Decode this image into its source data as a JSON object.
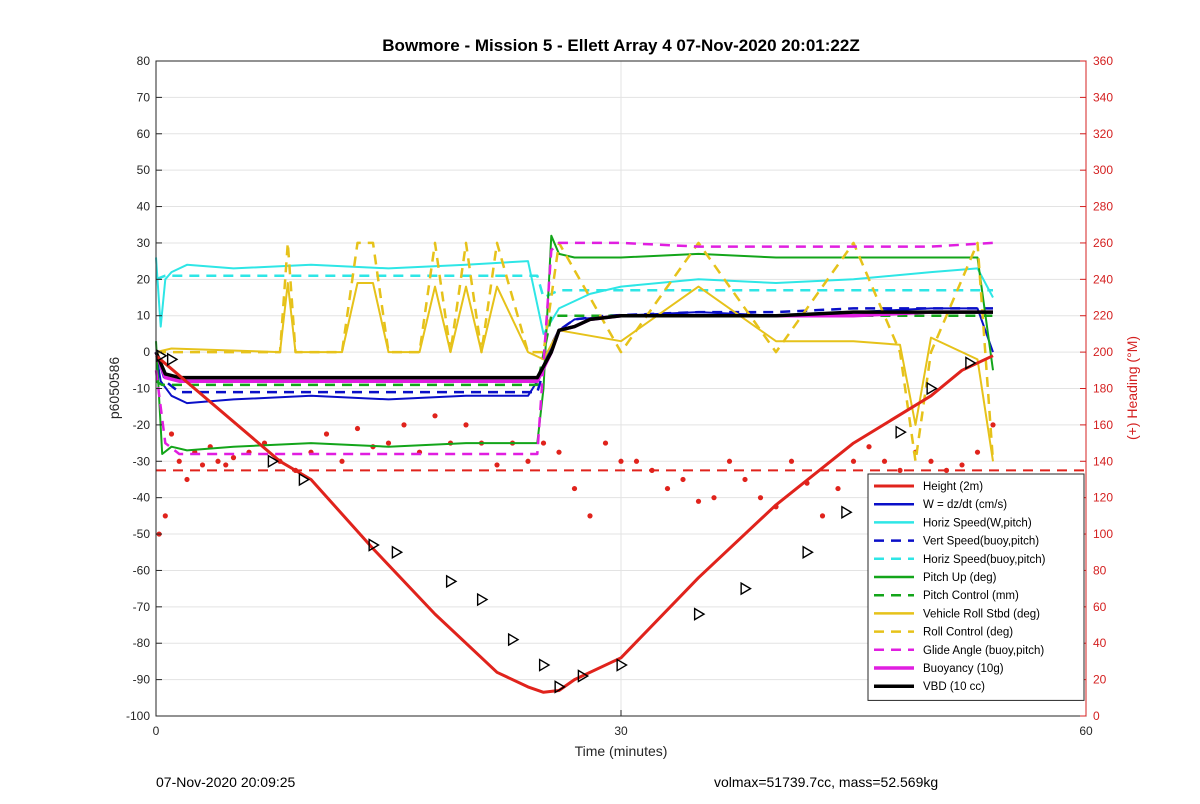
{
  "chart_data": {
    "type": "line",
    "title": "Bowmore - Mission 5 - Ellett Array 4 07-Nov-2020 20:01:22Z",
    "xlabel": "Time (minutes)",
    "ylabel_left": "p6050586",
    "ylabel_right": "(+) Heading (°M)",
    "xlim": [
      0,
      60
    ],
    "ylim_left": [
      -100,
      80
    ],
    "ylim_right": [
      0,
      360
    ],
    "xticks": [
      0,
      30,
      60
    ],
    "yticks_left": [
      -100,
      -90,
      -80,
      -70,
      -60,
      -50,
      -40,
      -30,
      -20,
      -10,
      0,
      10,
      20,
      30,
      40,
      50,
      60,
      70,
      80
    ],
    "yticks_right": [
      0,
      20,
      40,
      60,
      80,
      100,
      120,
      140,
      160,
      180,
      200,
      220,
      240,
      260,
      280,
      300,
      320,
      340,
      360
    ],
    "grid": true,
    "legend_position": "bottom-right",
    "colors": {
      "red": "#e0231c",
      "blue": "#0a0fc8",
      "cyan": "#2ee6e6",
      "green": "#13a51a",
      "gold": "#e6c21a",
      "magenta": "#e01ee0",
      "black": "#000000",
      "grid": "#e3e3e3",
      "right_axis": "#d42020"
    },
    "series": [
      {
        "name": "Height (2m)",
        "color": "#e0231c",
        "dash": false,
        "width": 3,
        "x": [
          0,
          8,
          10,
          14,
          18,
          22,
          24,
          25,
          26,
          27,
          30,
          35,
          40,
          45,
          50,
          52,
          54
        ],
        "y": [
          -1,
          -30,
          -35,
          -54,
          -72,
          -88,
          -92,
          -93.5,
          -93,
          -90,
          -84,
          -62,
          -42,
          -25,
          -12,
          -5,
          -1
        ]
      },
      {
        "name": "W = dz/dt (cm/s)",
        "color": "#0a0fc8",
        "dash": false,
        "width": 2,
        "x": [
          0,
          0.3,
          1,
          2,
          5,
          10,
          15,
          20,
          24,
          24.6,
          25.5,
          26,
          27,
          30,
          35,
          40,
          45,
          50,
          53,
          54
        ],
        "y": [
          0,
          -8,
          -12,
          -14,
          -13,
          -12,
          -13,
          -12,
          -12,
          -8,
          2,
          6,
          9,
          10,
          11,
          10,
          11,
          12,
          12,
          0
        ]
      },
      {
        "name": "Horiz Speed(W,pitch)",
        "color": "#2ee6e6",
        "dash": false,
        "width": 2,
        "x": [
          0,
          0.3,
          0.6,
          1,
          2,
          5,
          10,
          15,
          20,
          24,
          25,
          26,
          28,
          30,
          35,
          40,
          45,
          50,
          53,
          54
        ],
        "y": [
          26,
          7,
          20,
          22,
          24,
          23,
          24,
          23,
          24,
          25,
          5,
          12,
          16,
          18,
          20,
          19,
          20,
          22,
          23,
          15
        ]
      },
      {
        "name": "Vert Speed(buoy,pitch)",
        "color": "#0a0fc8",
        "dash": true,
        "width": 2.5,
        "x": [
          0,
          0.6,
          1.5,
          10,
          20,
          24.6,
          25.5,
          26,
          27,
          29,
          35,
          40,
          45,
          50,
          54
        ],
        "y": [
          0,
          -8,
          -11,
          -11,
          -11,
          -11,
          2,
          6,
          9,
          10,
          11,
          11,
          12,
          12,
          12
        ]
      },
      {
        "name": "Horiz Speed(buoy,pitch)",
        "color": "#2ee6e6",
        "dash": true,
        "width": 2.5,
        "x": [
          0,
          0.6,
          1.5,
          10,
          20,
          24.6,
          25,
          26,
          30,
          35,
          40,
          45,
          50,
          54
        ],
        "y": [
          20,
          21,
          21,
          21,
          21,
          21,
          15,
          17,
          17,
          17,
          17,
          17,
          17,
          17
        ]
      },
      {
        "name": "Pitch Up (deg)",
        "color": "#13a51a",
        "dash": false,
        "width": 2,
        "x": [
          0,
          0.4,
          1,
          2,
          5,
          10,
          15,
          20,
          24.6,
          25,
          25.5,
          26,
          27,
          30,
          35,
          40,
          45,
          50,
          53,
          54
        ],
        "y": [
          3,
          -28,
          -26,
          -27,
          -26,
          -25,
          -26,
          -25,
          -25,
          -10,
          32,
          27,
          26,
          26,
          27,
          26,
          26,
          26,
          26,
          -5
        ]
      },
      {
        "name": "Pitch Control (mm)",
        "color": "#13a51a",
        "dash": true,
        "width": 2.5,
        "x": [
          0,
          0.4,
          1.5,
          10,
          20,
          24.6,
          25.5,
          26,
          30,
          35,
          40,
          45,
          50,
          54
        ],
        "y": [
          -8,
          -9,
          -9,
          -9,
          -9,
          -9,
          10,
          10,
          10,
          10,
          10,
          10,
          10,
          10
        ]
      },
      {
        "name": "Vehicle Roll Stbd (deg)",
        "color": "#e6c21a",
        "dash": false,
        "width": 2,
        "x": [
          0,
          1,
          8,
          8.5,
          9,
          10,
          12,
          13,
          14,
          15,
          17,
          18,
          19,
          20,
          21,
          22,
          24,
          25,
          26,
          30,
          35,
          40,
          45,
          48,
          49,
          50,
          53,
          54
        ],
        "y": [
          0,
          1,
          0,
          19,
          0,
          0,
          0,
          19,
          19,
          0,
          0,
          18,
          0,
          18,
          0,
          18,
          0,
          -2,
          6,
          3,
          18,
          3,
          3,
          2,
          -20,
          4,
          -2,
          -30
        ]
      },
      {
        "name": "Roll Control (deg)",
        "color": "#e6c21a",
        "dash": true,
        "width": 2.5,
        "x": [
          0,
          1,
          8,
          8.5,
          9,
          10,
          12,
          13,
          14,
          15,
          17,
          18,
          19,
          20,
          21,
          22,
          24,
          25,
          26,
          30,
          35,
          40,
          45,
          48,
          49,
          50,
          53,
          54
        ],
        "y": [
          0,
          0,
          0,
          30,
          0,
          0,
          0,
          30,
          30,
          0,
          0,
          30,
          0,
          30,
          0,
          30,
          0,
          0,
          30,
          0,
          30,
          0,
          30,
          0,
          -30,
          0,
          30,
          -30
        ]
      },
      {
        "name": "Glide Angle (buoy,pitch)",
        "color": "#e01ee0",
        "dash": true,
        "width": 2.5,
        "x": [
          0,
          0.6,
          1.5,
          10,
          20,
          24.6,
          25.5,
          26,
          30,
          35,
          40,
          45,
          50,
          54
        ],
        "y": [
          -5,
          -25,
          -28,
          -28,
          -28,
          -28,
          28,
          30,
          30,
          29,
          29,
          29,
          29,
          30
        ]
      },
      {
        "name": "Buoyancy (10g)",
        "color": "#e01ee0",
        "dash": false,
        "width": 3.5,
        "x": [
          0,
          0.6,
          1.5,
          10,
          20,
          24.6,
          25.5,
          26,
          27,
          28,
          30,
          35,
          40,
          45,
          50,
          54
        ],
        "y": [
          0,
          -7,
          -8,
          -8,
          -8,
          -8,
          0,
          6,
          7,
          9,
          10,
          10,
          10,
          10,
          11,
          11
        ]
      },
      {
        "name": "VBD (10 cc)",
        "color": "#000000",
        "dash": false,
        "width": 3.5,
        "x": [
          0,
          0.6,
          1.5,
          10,
          20,
          24.6,
          25.5,
          26,
          27,
          28,
          30,
          35,
          40,
          45,
          50,
          54
        ],
        "y": [
          0,
          -6,
          -7,
          -7,
          -7,
          -7,
          0,
          6,
          7,
          9,
          10,
          10,
          10,
          11,
          11,
          11
        ]
      }
    ],
    "heading_reference": {
      "color": "#e0231c",
      "dash": true,
      "value": 135
    },
    "heading_points": {
      "color": "#e0231c",
      "x": [
        0.2,
        0.6,
        1,
        1.5,
        2,
        2.5,
        3,
        3.5,
        4,
        4.5,
        5,
        6,
        7,
        8,
        9,
        10,
        11,
        12,
        13,
        14,
        15,
        16,
        17,
        18,
        19,
        20,
        21,
        22,
        23,
        24,
        25,
        26,
        27,
        28,
        29,
        30,
        31,
        32,
        33,
        34,
        35,
        36,
        37,
        38,
        39,
        40,
        41,
        42,
        43,
        44,
        45,
        46,
        47,
        48,
        49,
        50,
        51,
        52,
        53,
        54
      ],
      "y": [
        100,
        110,
        155,
        140,
        130,
        145,
        138,
        148,
        140,
        138,
        142,
        145,
        150,
        140,
        135,
        145,
        155,
        140,
        158,
        148,
        150,
        160,
        145,
        165,
        150,
        160,
        150,
        138,
        150,
        140,
        150,
        145,
        125,
        110,
        150,
        140,
        140,
        135,
        125,
        130,
        118,
        120,
        140,
        130,
        120,
        115,
        140,
        128,
        110,
        125,
        140,
        148,
        140,
        135,
        145,
        140,
        135,
        138,
        145,
        160
      ]
    },
    "markers": {
      "shape": "triangle",
      "x": [
        0.3,
        1,
        7.5,
        9.5,
        14,
        15.5,
        19,
        21,
        23,
        25,
        26,
        27.5,
        30,
        35,
        38,
        42,
        44.5,
        48,
        50,
        52.5
      ],
      "y": [
        -1,
        -2,
        -30,
        -35,
        -53,
        -55,
        -63,
        -68,
        -79,
        -86,
        -92,
        -89,
        -86,
        -72,
        -65,
        -55,
        -44,
        -22,
        -10,
        -3
      ]
    }
  },
  "footer": {
    "left": "07-Nov-2020 20:09:25",
    "right": "volmax=51739.7cc, mass=52.569kg"
  }
}
